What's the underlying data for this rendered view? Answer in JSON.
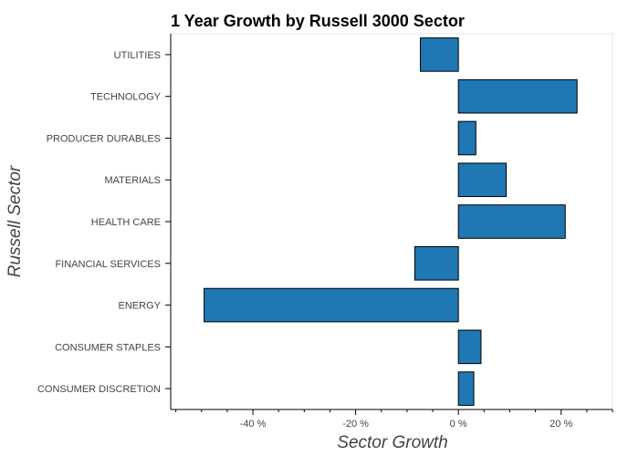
{
  "chart_data": {
    "type": "bar",
    "orientation": "horizontal",
    "title": "1 Year Growth by Russell 3000 Sector",
    "xlabel": "Sector Growth",
    "ylabel": "Russell Sector",
    "categories": [
      "UTILITIES",
      "TECHNOLOGY",
      "PRODUCER DURABLES",
      "MATERIALS",
      "HEALTH CARE",
      "FINANCIAL SERVICES",
      "ENERGY",
      "CONSUMER STAPLES",
      "CONSUMER DISCRETION"
    ],
    "values": [
      -7.4,
      23.1,
      3.4,
      9.3,
      20.8,
      -8.5,
      -49.5,
      4.4,
      3.0
    ],
    "xlim": [
      -56,
      30
    ],
    "xticks": [
      -40,
      -20,
      0,
      20
    ],
    "xtick_labels": [
      "-40 %",
      "-20 %",
      "0 %",
      "20 %"
    ],
    "bar_color": "#1f77b4",
    "bar_outline_color": "#000000",
    "grid": false
  }
}
